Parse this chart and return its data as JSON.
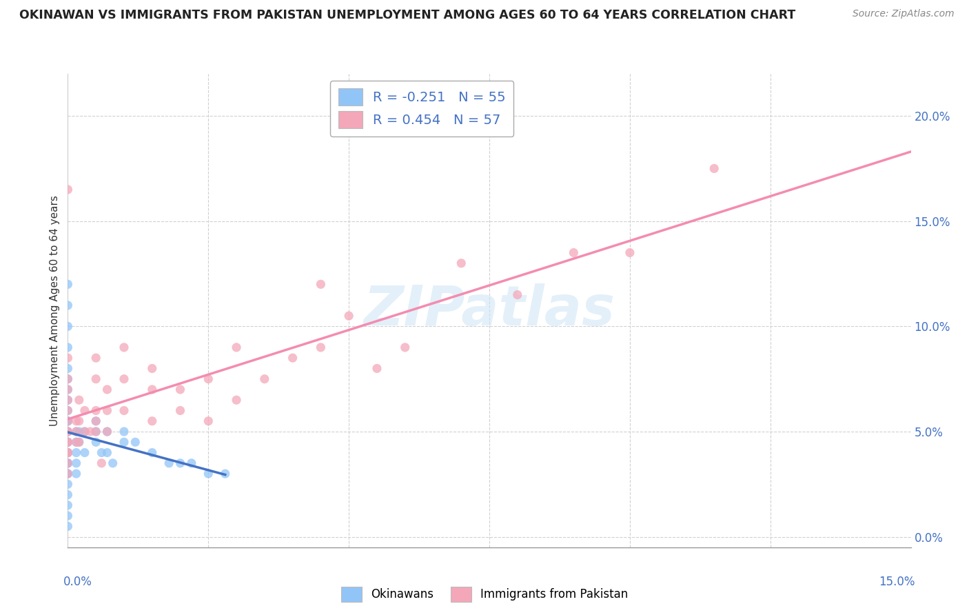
{
  "title": "OKINAWAN VS IMMIGRANTS FROM PAKISTAN UNEMPLOYMENT AMONG AGES 60 TO 64 YEARS CORRELATION CHART",
  "source": "Source: ZipAtlas.com",
  "ylabel": "Unemployment Among Ages 60 to 64 years",
  "ytick_vals": [
    0.0,
    5.0,
    10.0,
    15.0,
    20.0
  ],
  "xlim": [
    0.0,
    15.0
  ],
  "ylim": [
    -0.5,
    22.0
  ],
  "okinawan_color": "#92c5f7",
  "pakistan_color": "#f4a7b9",
  "okinawan_line_color": "#4472c4",
  "pakistan_line_color": "#f48cb0",
  "legend_label1": "R = -0.251   N = 55",
  "legend_label2": "R = 0.454   N = 57",
  "bottom_label1": "Okinawans",
  "bottom_label2": "Immigrants from Pakistan",
  "okinawan_x": [
    0.0,
    0.0,
    0.0,
    0.0,
    0.0,
    0.0,
    0.0,
    0.0,
    0.0,
    0.0,
    0.0,
    0.0,
    0.0,
    0.0,
    0.0,
    0.0,
    0.0,
    0.0,
    0.0,
    0.0,
    0.0,
    0.0,
    0.0,
    0.0,
    0.0,
    0.0,
    0.0,
    0.0,
    0.0,
    0.0,
    0.3,
    0.3,
    0.5,
    0.5,
    0.5,
    0.7,
    0.7,
    1.0,
    1.0,
    1.2,
    1.5,
    1.8,
    2.0,
    2.2,
    2.5,
    0.15,
    0.15,
    0.15,
    0.15,
    0.15,
    0.2,
    0.2,
    0.6,
    0.8,
    2.8
  ],
  "okinawan_y": [
    0.5,
    1.0,
    1.5,
    2.0,
    2.5,
    3.0,
    3.0,
    3.5,
    3.5,
    4.0,
    4.0,
    4.0,
    4.5,
    4.5,
    5.0,
    5.0,
    5.5,
    5.5,
    6.0,
    6.5,
    7.0,
    7.5,
    8.0,
    9.0,
    10.0,
    11.0,
    12.0,
    3.5,
    4.5,
    5.5,
    4.0,
    5.0,
    4.5,
    5.0,
    5.5,
    4.0,
    5.0,
    4.5,
    5.0,
    4.5,
    4.0,
    3.5,
    3.5,
    3.5,
    3.0,
    3.0,
    3.5,
    4.0,
    4.5,
    5.0,
    4.5,
    5.0,
    4.0,
    3.5,
    3.0
  ],
  "pakistan_x": [
    0.0,
    0.0,
    0.0,
    0.0,
    0.0,
    0.0,
    0.0,
    0.0,
    0.0,
    0.0,
    0.0,
    0.0,
    0.0,
    0.15,
    0.15,
    0.15,
    0.3,
    0.3,
    0.5,
    0.5,
    0.5,
    0.5,
    0.5,
    0.7,
    0.7,
    0.7,
    1.0,
    1.0,
    1.0,
    1.5,
    1.5,
    1.5,
    2.0,
    2.0,
    2.5,
    2.5,
    3.0,
    3.0,
    3.5,
    4.0,
    4.5,
    4.5,
    5.0,
    5.5,
    6.0,
    7.0,
    8.0,
    9.0,
    10.0,
    11.5,
    0.0,
    0.0,
    0.2,
    0.2,
    0.2,
    0.4,
    0.6
  ],
  "pakistan_y": [
    3.0,
    3.5,
    4.0,
    4.0,
    4.5,
    4.5,
    5.0,
    5.0,
    5.5,
    6.0,
    6.5,
    7.0,
    7.5,
    4.5,
    5.0,
    5.5,
    5.0,
    6.0,
    5.0,
    5.5,
    6.0,
    7.5,
    8.5,
    5.0,
    6.0,
    7.0,
    6.0,
    7.5,
    9.0,
    5.5,
    7.0,
    8.0,
    6.0,
    7.0,
    5.5,
    7.5,
    6.5,
    9.0,
    7.5,
    8.5,
    9.0,
    12.0,
    10.5,
    8.0,
    9.0,
    13.0,
    11.5,
    13.5,
    13.5,
    17.5,
    8.5,
    16.5,
    4.5,
    5.5,
    6.5,
    5.0,
    3.5
  ]
}
